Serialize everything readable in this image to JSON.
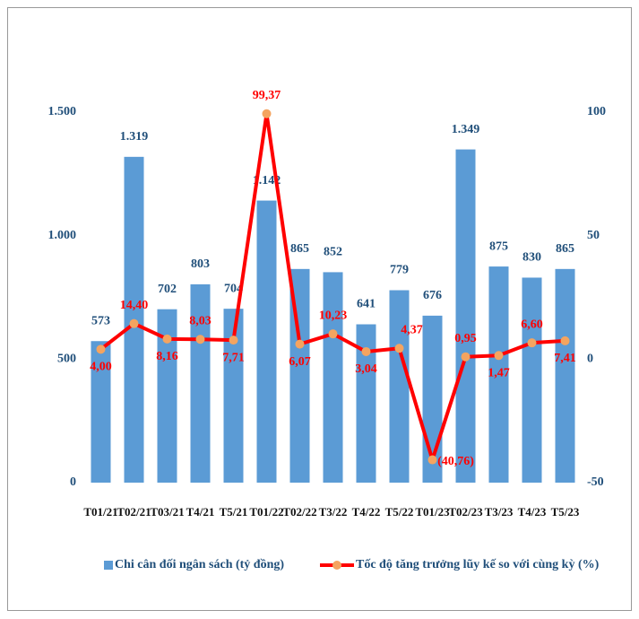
{
  "chart_data": {
    "type": "bar",
    "categories": [
      "T01/21",
      "T02/21",
      "T03/21",
      "T4/21",
      "T5/21",
      "T01/22",
      "T02/22",
      "T3/22",
      "T4/22",
      "T5/22",
      "T01/23",
      "T02/23",
      "T3/23",
      "T4/23",
      "T5/23"
    ],
    "series": [
      {
        "name": "Chi cân đối ngân sách (tỷ đồng)",
        "type": "bar",
        "color": "#5b9bd5",
        "values": [
          573,
          1319,
          702,
          803,
          704,
          1142,
          865,
          852,
          641,
          779,
          676,
          1349,
          875,
          830,
          865
        ],
        "value_labels": [
          "573",
          "1.319",
          "702",
          "803",
          "704",
          "1.142",
          "865",
          "852",
          "641",
          "779",
          "676",
          "1.349",
          "875",
          "830",
          "865"
        ]
      },
      {
        "name": "Tốc độ tăng trưởng lũy kế so với cùng kỳ (%)",
        "type": "line",
        "axis": "y2",
        "color": "#ff0000",
        "marker_color": "#f4a460",
        "values": [
          4.0,
          14.4,
          8.16,
          8.03,
          7.71,
          99.37,
          6.07,
          10.23,
          3.04,
          4.37,
          -40.76,
          0.95,
          1.47,
          6.6,
          7.41
        ],
        "value_labels": [
          "4,00",
          "14,40",
          "8,16",
          "8,03",
          "7,71",
          "99,37",
          "6,07",
          "10,23",
          "3,04",
          "4,37",
          "(40,76)",
          "0,95",
          "1,47",
          "6,60",
          "7,41"
        ]
      }
    ],
    "ylim": [
      0,
      1500
    ],
    "yticks": [
      0,
      500,
      {
        "value": 1000,
        "label": "1.000"
      },
      {
        "value": 1500,
        "label": "1.500"
      }
    ],
    "y2lim": [
      -50,
      100
    ],
    "y2ticks": [
      -50,
      0,
      50,
      100
    ],
    "legend": "bottom"
  }
}
